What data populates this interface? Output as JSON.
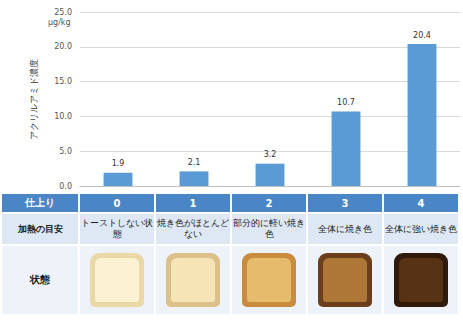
{
  "chart_data": {
    "type": "bar",
    "ylabel": "アクリルアミド濃度",
    "unit": "μg/kg",
    "categories": [
      "0",
      "1",
      "2",
      "3",
      "4"
    ],
    "values": [
      1.9,
      2.1,
      3.2,
      10.7,
      20.4
    ],
    "color": "#5b9bd5",
    "ylim": [
      0,
      25
    ],
    "yticks": [
      {
        "value": 0,
        "label": "0.0"
      },
      {
        "value": 5,
        "label": "5.0"
      },
      {
        "value": 10,
        "label": "10.0"
      },
      {
        "value": 15,
        "label": "15.0"
      },
      {
        "value": 20,
        "label": "20.0"
      },
      {
        "value": 25,
        "label": "25.0"
      }
    ],
    "grid": true,
    "data_labels": true,
    "tick_labels": "y"
  },
  "table": {
    "header": "仕上り",
    "rows": [
      {
        "label": "加熱の目安",
        "cells": [
          "トーストしない状態",
          "焼き色がほとんどない",
          "部分的に軽い焼き色",
          "全体に焼き色",
          "全体に強い焼き色"
        ]
      },
      {
        "label": "状態"
      }
    ]
  }
}
